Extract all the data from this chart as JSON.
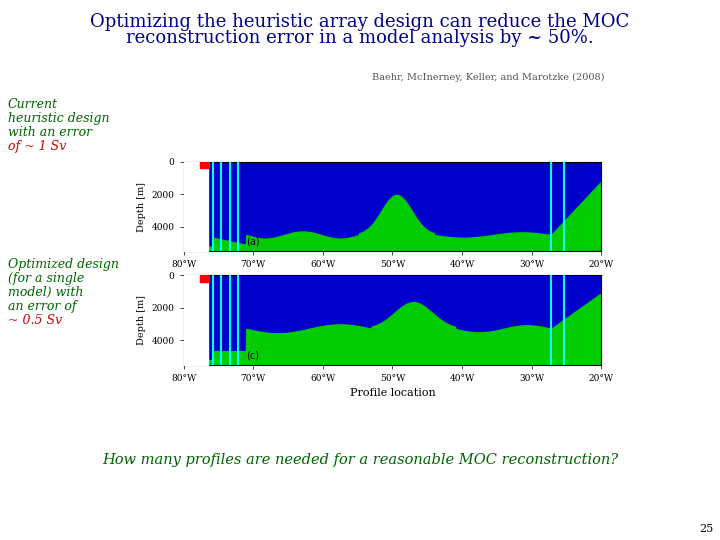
{
  "title_line1": "Optimizing the heuristic array design can reduce the MOC",
  "title_line2": "reconstruction error in a model analysis by ~ 50%.",
  "title_color": "#00008B",
  "reference": "Baehr, McInerney, Keller, and Marotzke (2008)",
  "reference_color": "#555555",
  "left_label1_lines": [
    "Current",
    "heuristic design",
    "with an error",
    "of ~ 1 Sv"
  ],
  "left_label1_color_main": "#006400",
  "left_label1_highlight": "of ~ 1 Sv",
  "left_label1_highlight_color": "#CC0000",
  "left_label2_lines": [
    "Optimized design",
    "(for a single",
    "model) with",
    "an error of",
    "~ 0.5 Sv"
  ],
  "left_label2_color_main": "#006400",
  "left_label2_highlight": "~ 0.5 Sv",
  "left_label2_highlight_color": "#CC0000",
  "bottom_label": "How many profiles are needed for a reasonable MOC reconstruction?",
  "bottom_label_color": "#006400",
  "page_number": "25",
  "background_color": "#FFFFFF",
  "panel_label_a": "(a)",
  "panel_label_c": "(c)",
  "blue_color": "#0000CC",
  "green_color": "#00CC00",
  "white_color": "#FFFFFF",
  "cyan_color": "#00FFFF",
  "red_color": "#FF0000",
  "ocean_blue": "#1111BB",
  "ytick_labels": [
    "0",
    "2000",
    "4000"
  ],
  "xtick_labels": [
    "80°W",
    "70°W",
    "60°W",
    "50°W",
    "40°W",
    "30°W",
    "20°W"
  ]
}
